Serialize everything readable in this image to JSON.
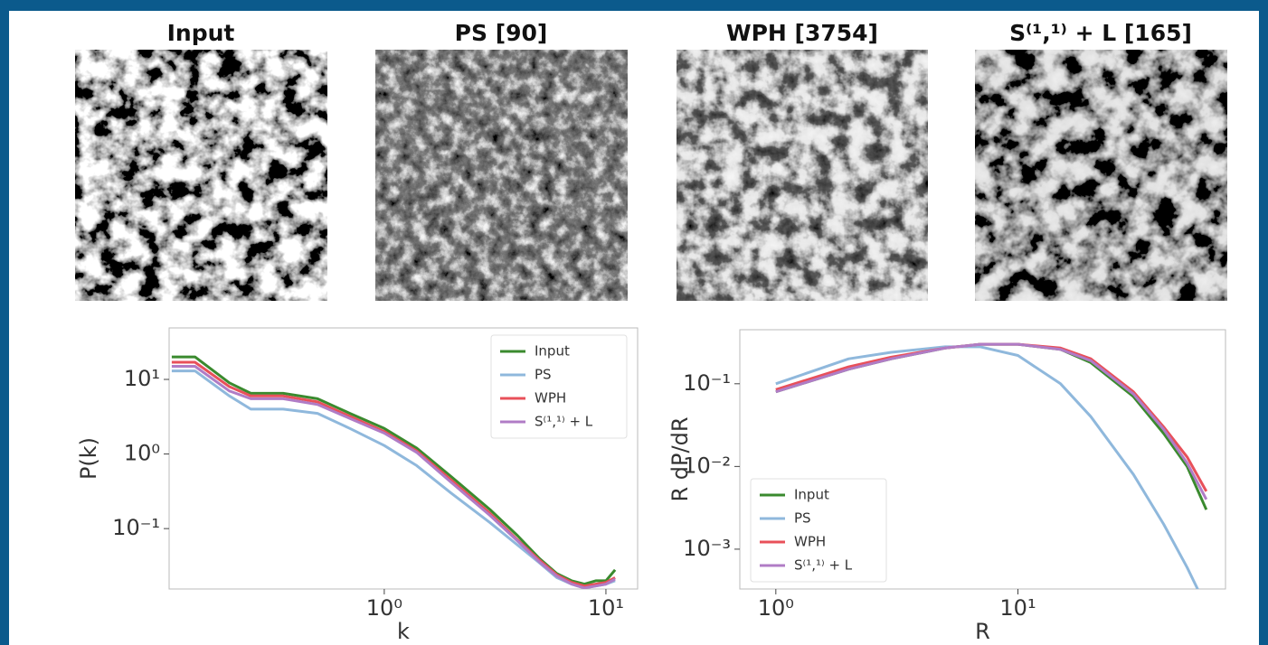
{
  "panels": [
    {
      "title": "Input"
    },
    {
      "title": "PS [90]"
    },
    {
      "title": "WPH [3754]"
    },
    {
      "title": "S⁽¹,¹⁾ + L [165]"
    }
  ],
  "chart_data": [
    {
      "type": "line",
      "xlabel": "k",
      "ylabel": "P(k)",
      "xlog": true,
      "ylog": true,
      "legend": "upper right",
      "xlim": [
        0.107,
        13.9
      ],
      "ylim": [
        0.0155,
        49
      ],
      "xticks": [
        {
          "value": 1,
          "label": "10⁰"
        },
        {
          "value": 10,
          "label": "10¹"
        }
      ],
      "yticks": [
        {
          "value": 0.1,
          "label": "10⁻¹"
        },
        {
          "value": 1,
          "label": "10⁰"
        },
        {
          "value": 10,
          "label": "10¹"
        }
      ],
      "x": [
        0.11,
        0.14,
        0.2,
        0.25,
        0.35,
        0.5,
        0.7,
        1.0,
        1.4,
        2,
        3,
        4,
        5,
        6,
        7,
        8,
        9,
        10,
        11
      ],
      "series": [
        {
          "name": "Input",
          "color": "#3a8a2e",
          "values": [
            20,
            20,
            9,
            6.5,
            6.5,
            5.5,
            3.5,
            2.2,
            1.2,
            0.5,
            0.18,
            0.08,
            0.04,
            0.025,
            0.02,
            0.018,
            0.02,
            0.02,
            0.028
          ]
        },
        {
          "name": "PS",
          "color": "#8fb8dc",
          "values": [
            13,
            13,
            6,
            4,
            4,
            3.5,
            2.2,
            1.3,
            0.7,
            0.3,
            0.12,
            0.06,
            0.035,
            0.022,
            0.018,
            0.016,
            0.017,
            0.018,
            0.02
          ]
        },
        {
          "name": "WPH",
          "color": "#e8505a",
          "values": [
            17,
            17,
            8,
            6,
            6,
            5,
            3.2,
            2,
            1.1,
            0.45,
            0.16,
            0.07,
            0.038,
            0.024,
            0.019,
            0.017,
            0.018,
            0.019,
            0.022
          ]
        },
        {
          "name": "S⁽¹,¹⁾ + L",
          "color": "#b07cc6",
          "values": [
            15,
            15,
            7,
            5.5,
            5.5,
            4.6,
            3,
            1.9,
            1.05,
            0.42,
            0.15,
            0.068,
            0.036,
            0.023,
            0.018,
            0.016,
            0.017,
            0.018,
            0.021
          ]
        }
      ]
    },
    {
      "type": "line",
      "xlabel": "R",
      "ylabel": "R dP/dR",
      "xlog": true,
      "ylog": true,
      "legend": "lower left",
      "xlim": [
        0.71,
        72
      ],
      "ylim": [
        0.00033,
        0.45
      ],
      "xticks": [
        {
          "value": 1,
          "label": "10⁰"
        },
        {
          "value": 10,
          "label": "10¹"
        }
      ],
      "yticks": [
        {
          "value": 0.001,
          "label": "10⁻³"
        },
        {
          "value": 0.01,
          "label": "10⁻²"
        },
        {
          "value": 0.1,
          "label": "10⁻¹"
        }
      ],
      "x": [
        1,
        2,
        3,
        5,
        7,
        10,
        15,
        20,
        30,
        40,
        50,
        60
      ],
      "series": [
        {
          "name": "Input",
          "color": "#3a8a2e",
          "values": [
            0.08,
            0.15,
            0.2,
            0.27,
            0.3,
            0.3,
            0.26,
            0.18,
            0.07,
            0.025,
            0.01,
            0.003
          ]
        },
        {
          "name": "PS",
          "color": "#8fb8dc",
          "values": [
            0.1,
            0.2,
            0.24,
            0.28,
            0.28,
            0.22,
            0.1,
            0.04,
            0.008,
            0.002,
            0.0006,
            0.0002
          ]
        },
        {
          "name": "WPH",
          "color": "#e8505a",
          "values": [
            0.085,
            0.16,
            0.21,
            0.27,
            0.3,
            0.3,
            0.27,
            0.2,
            0.08,
            0.03,
            0.013,
            0.005
          ]
        },
        {
          "name": "S⁽¹,¹⁾ + L",
          "color": "#b07cc6",
          "values": [
            0.08,
            0.15,
            0.2,
            0.27,
            0.3,
            0.3,
            0.26,
            0.19,
            0.075,
            0.028,
            0.011,
            0.004
          ]
        }
      ]
    }
  ]
}
